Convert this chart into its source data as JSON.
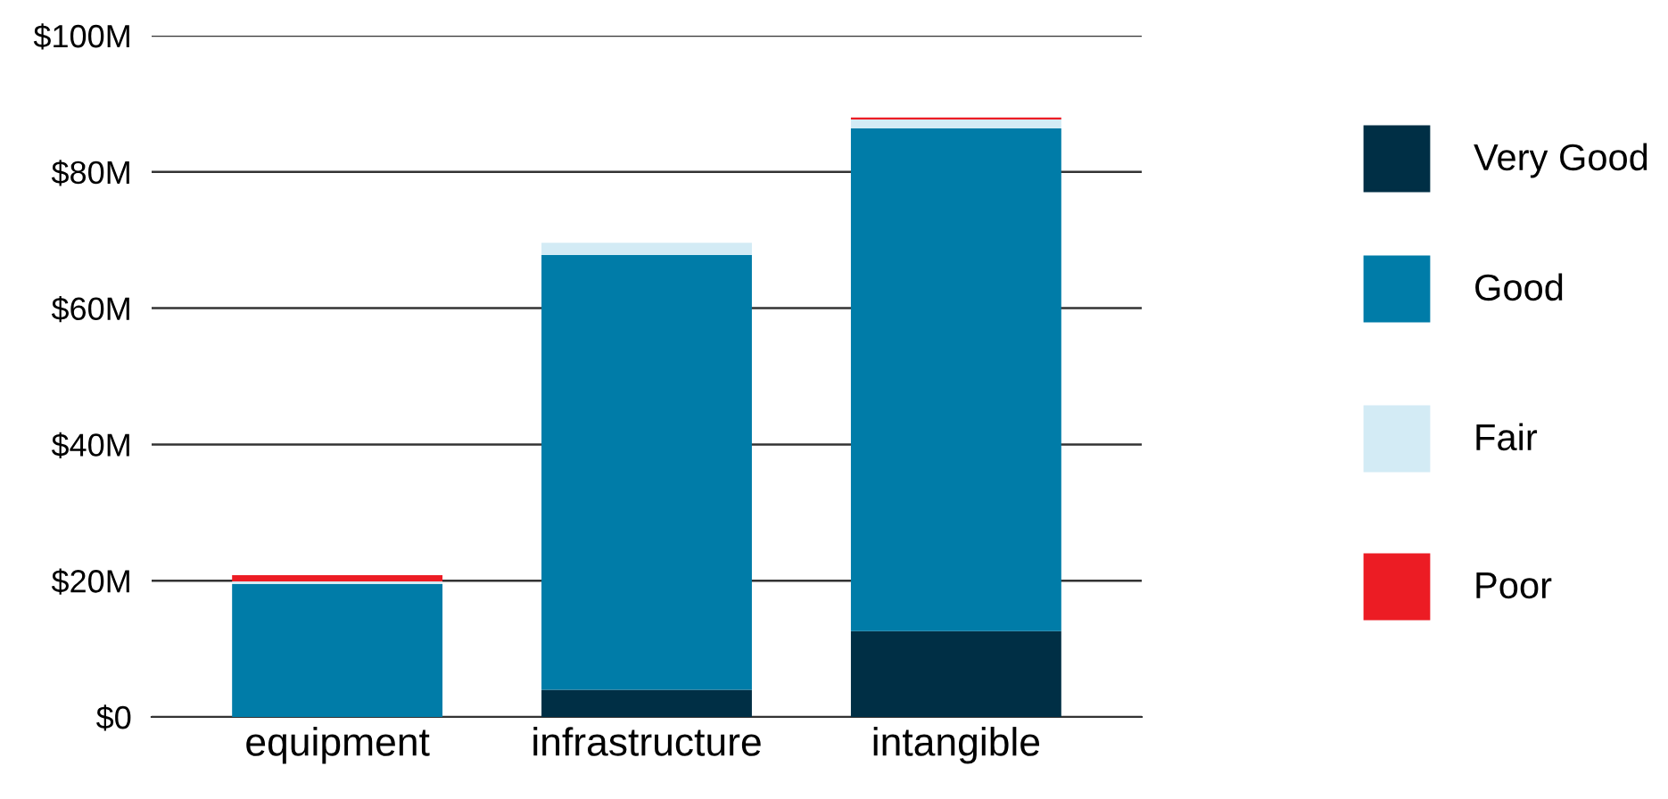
{
  "chart_data": {
    "type": "bar",
    "stacked": true,
    "categories": [
      "equipment",
      "infrastructure",
      "intangible"
    ],
    "series": [
      {
        "name": "Very Good",
        "color": "#002f45",
        "values": [
          0,
          4.0,
          12.6
        ]
      },
      {
        "name": "Good",
        "color": "#007ca8",
        "values": [
          19.5,
          63.8,
          73.8
        ]
      },
      {
        "name": "Fair",
        "color": "#d3ebf5",
        "values": [
          0.4,
          1.8,
          1.3
        ]
      },
      {
        "name": "Poor",
        "color": "#ec1c24",
        "values": [
          0.9,
          0,
          0.3
        ]
      }
    ],
    "ylim": [
      0,
      100
    ],
    "yticks": [
      {
        "value": 0,
        "label": "$0"
      },
      {
        "value": 20,
        "label": "$20M"
      },
      {
        "value": 40,
        "label": "$40M"
      },
      {
        "value": 60,
        "label": "$60M"
      },
      {
        "value": 80,
        "label": "$80M"
      },
      {
        "value": 100,
        "label": "$100M"
      }
    ],
    "grid": "y",
    "legend": "right"
  }
}
